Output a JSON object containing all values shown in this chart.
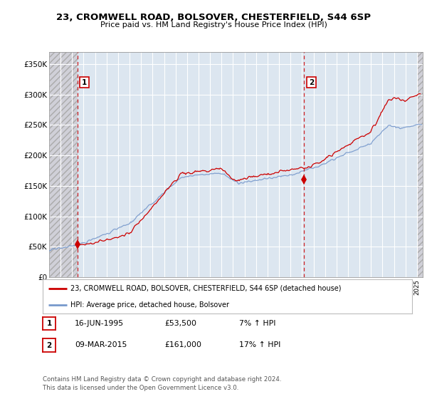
{
  "title": "23, CROMWELL ROAD, BOLSOVER, CHESTERFIELD, S44 6SP",
  "subtitle": "Price paid vs. HM Land Registry's House Price Index (HPI)",
  "ylabel_ticks": [
    "£0",
    "£50K",
    "£100K",
    "£150K",
    "£200K",
    "£250K",
    "£300K",
    "£350K"
  ],
  "ytick_vals": [
    0,
    50000,
    100000,
    150000,
    200000,
    250000,
    300000,
    350000
  ],
  "ylim": [
    0,
    370000
  ],
  "xlim_start": 1993.0,
  "xlim_end": 2025.5,
  "purchase1_x": 1995.46,
  "purchase1_y": 53500,
  "purchase1_label": "1",
  "purchase2_x": 2015.18,
  "purchase2_y": 161000,
  "purchase2_label": "2",
  "hatch_left_end": 1995.46,
  "hatch_right_start": 2025.0,
  "red_color": "#cc0000",
  "blue_color": "#7799cc",
  "hatch_color": "#d0d0d8",
  "plot_bg_color": "#dce6f0",
  "grid_color": "#ffffff",
  "legend_label_red": "23, CROMWELL ROAD, BOLSOVER, CHESTERFIELD, S44 6SP (detached house)",
  "legend_label_blue": "HPI: Average price, detached house, Bolsover",
  "table_row1": [
    "1",
    "16-JUN-1995",
    "£53,500",
    "7% ↑ HPI"
  ],
  "table_row2": [
    "2",
    "09-MAR-2015",
    "£161,000",
    "17% ↑ HPI"
  ],
  "footnote": "Contains HM Land Registry data © Crown copyright and database right 2024.\nThis data is licensed under the Open Government Licence v3.0.",
  "background_color": "#ffffff"
}
